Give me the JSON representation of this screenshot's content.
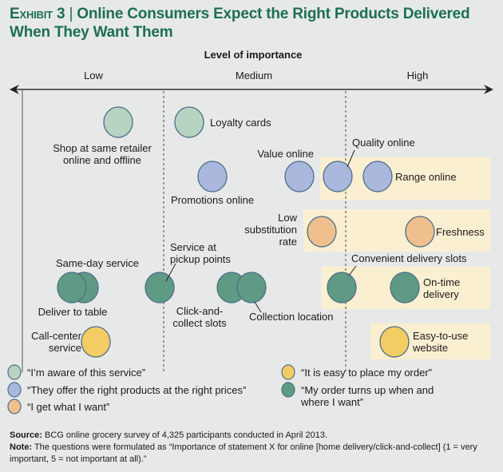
{
  "title": {
    "exhibit": "Exhibit 3",
    "separator": "|",
    "text": "Online Consumers Expect the Right Products Delivered When They Want Them"
  },
  "chart_data": {
    "type": "scatter",
    "title": "Online Consumers Expect the Right Products Delivered When They Want Them",
    "xlabel": "Level of importance",
    "x_categories": [
      "Low",
      "Medium",
      "High"
    ],
    "grid": false,
    "legend_placement": "bottom",
    "series": [
      {
        "key": "aware",
        "name": "“I’m aware of this service”",
        "color": "#b7d3c2"
      },
      {
        "key": "products",
        "name": "“They offer the right products at the right prices”",
        "color": "#a9b8dc"
      },
      {
        "key": "want",
        "name": "“I get what I want”",
        "color": "#efc08d"
      },
      {
        "key": "easy",
        "name": "“It is easy to place my order”",
        "color": "#f3cc63"
      },
      {
        "key": "delivery",
        "name": "“My order turns up when and where I want”",
        "color": "#5e9a84"
      }
    ],
    "points": [
      {
        "label": [
          "Shop at same retailer",
          "online and offline"
        ],
        "series": "aware",
        "importance": "Low",
        "highlighted": false
      },
      {
        "label": [
          "Loyalty cards"
        ],
        "series": "aware",
        "importance": "Medium",
        "highlighted": false
      },
      {
        "label": [
          "Promotions online"
        ],
        "series": "products",
        "importance": "Medium",
        "highlighted": false
      },
      {
        "label": [
          "Value online"
        ],
        "series": "products",
        "importance": "Medium",
        "highlighted": false
      },
      {
        "label": [
          "Quality online"
        ],
        "series": "products",
        "importance": "High",
        "highlighted": true
      },
      {
        "label": [
          "Range online"
        ],
        "series": "products",
        "importance": "High",
        "highlighted": true
      },
      {
        "label": [
          "Low",
          "substitution",
          "rate"
        ],
        "series": "want",
        "importance": "Medium",
        "highlighted": true
      },
      {
        "label": [
          "Freshness"
        ],
        "series": "want",
        "importance": "High",
        "highlighted": true
      },
      {
        "label": [
          "Same-day service"
        ],
        "series": "delivery",
        "importance": "Low",
        "highlighted": false
      },
      {
        "label": [
          "Deliver to table"
        ],
        "series": "delivery",
        "importance": "Low",
        "highlighted": false
      },
      {
        "label": [
          "Service at",
          "pickup points"
        ],
        "series": "delivery",
        "importance": "Low",
        "highlighted": false
      },
      {
        "label": [
          "Click-and-",
          "collect slots"
        ],
        "series": "delivery",
        "importance": "Medium",
        "highlighted": false
      },
      {
        "label": [
          "Collection location"
        ],
        "series": "delivery",
        "importance": "Medium",
        "highlighted": false
      },
      {
        "label": [
          "Convenient delivery slots"
        ],
        "series": "delivery",
        "importance": "High",
        "highlighted": true
      },
      {
        "label": [
          "On-time",
          "delivery"
        ],
        "series": "delivery",
        "importance": "High",
        "highlighted": true
      },
      {
        "label": [
          "Call-center",
          "service"
        ],
        "series": "easy",
        "importance": "Low",
        "highlighted": false
      },
      {
        "label": [
          "Easy-to-use",
          "website"
        ],
        "series": "easy",
        "importance": "High",
        "highlighted": true
      }
    ]
  },
  "colors": {
    "title": "#1d6e56",
    "highlight": "#fbefd1",
    "circle_stroke": "#4f6e88",
    "background": "#e7e9e8"
  },
  "footer": {
    "source_label": "Source:",
    "source_text": " BCG online grocery survey of 4,325 participants conducted in April 2013.",
    "note_label": "Note:",
    "note_text": " The questions were formulated as “Importance of statement X for online [home delivery/click-and-collect] (1 = very important, 5 = not important at all).”"
  }
}
